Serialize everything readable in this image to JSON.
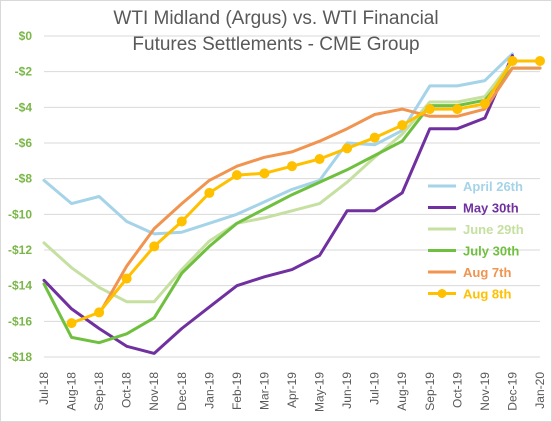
{
  "chart_data": {
    "type": "line",
    "title_line1": "WTI Midland (Argus) vs. WTI Financial",
    "title_line2": "Futures Settlements - CME Group",
    "xlabel": "",
    "ylabel": "",
    "ylim": [
      -18,
      0
    ],
    "yticks": [
      {
        "value": 0,
        "label": "$0"
      },
      {
        "value": -2,
        "label": "-$2"
      },
      {
        "value": -4,
        "label": "-$4"
      },
      {
        "value": -6,
        "label": "-$6"
      },
      {
        "value": -8,
        "label": "-$8"
      },
      {
        "value": -10,
        "label": "-$10"
      },
      {
        "value": -12,
        "label": "-$12"
      },
      {
        "value": -14,
        "label": "-$14"
      },
      {
        "value": -16,
        "label": "-$16"
      },
      {
        "value": -18,
        "label": "-$18"
      }
    ],
    "categories": [
      "Jul-18",
      "Aug-18",
      "Sep-18",
      "Oct-18",
      "Nov-18",
      "Dec-18",
      "Jan-19",
      "Feb-19",
      "Mar-19",
      "Apr-19",
      "May-19",
      "Jun-19",
      "Jul-19",
      "Aug-19",
      "Sep-19",
      "Oct-19",
      "Nov-19",
      "Dec-19",
      "Jan-20"
    ],
    "grid": true,
    "legend_position": "right",
    "series": [
      {
        "name": "April 26th",
        "color": "#a5d3e8",
        "width": 3,
        "marker": false,
        "values": [
          -8.1,
          -9.4,
          -9.0,
          -10.4,
          -11.1,
          -11.0,
          -10.5,
          -10.0,
          -9.3,
          -8.6,
          -8.1,
          -6.0,
          -6.1,
          -5.3,
          -2.8,
          -2.8,
          -2.5,
          -1.0,
          null
        ]
      },
      {
        "name": "May 30th",
        "color": "#7030a0",
        "width": 3,
        "marker": false,
        "values": [
          -13.7,
          -15.3,
          -16.4,
          -17.4,
          -17.8,
          -16.4,
          -15.2,
          -14.0,
          -13.5,
          -13.1,
          -12.3,
          -9.8,
          -9.8,
          -8.8,
          -5.2,
          -5.2,
          -4.6,
          -1.1,
          null
        ]
      },
      {
        "name": "June 29th",
        "color": "#c5e0a0",
        "width": 3,
        "marker": false,
        "values": [
          -11.6,
          -13.0,
          -14.1,
          -14.9,
          -14.9,
          -13.1,
          -11.5,
          -10.5,
          -10.2,
          -9.8,
          -9.4,
          -8.2,
          -6.8,
          -5.5,
          -3.7,
          -3.7,
          -3.4,
          -1.4,
          null
        ]
      },
      {
        "name": "July 30th",
        "color": "#70c040",
        "width": 3,
        "marker": false,
        "values": [
          -13.9,
          -16.9,
          -17.2,
          -16.7,
          -15.8,
          -13.3,
          -11.8,
          -10.5,
          -9.7,
          -8.9,
          -8.2,
          -7.5,
          -6.7,
          -5.9,
          -3.9,
          -3.9,
          -3.6,
          -1.8,
          -1.8
        ]
      },
      {
        "name": "Aug 7th",
        "color": "#f0944f",
        "width": 3,
        "marker": false,
        "values": [
          null,
          null,
          -15.6,
          -12.9,
          -10.8,
          -9.4,
          -8.1,
          -7.3,
          -6.8,
          -6.5,
          -5.9,
          -5.2,
          -4.4,
          -4.1,
          -4.5,
          -4.5,
          -4.1,
          -1.8,
          -1.8
        ]
      },
      {
        "name": "Aug 8th",
        "color": "#ffc000",
        "width": 3,
        "marker": true,
        "values": [
          null,
          -16.1,
          -15.5,
          -13.6,
          -11.8,
          -10.4,
          -8.8,
          -7.8,
          -7.7,
          -7.3,
          -6.9,
          -6.3,
          -5.7,
          -5.0,
          -4.1,
          -4.1,
          -3.8,
          -1.4,
          -1.4
        ]
      }
    ]
  }
}
